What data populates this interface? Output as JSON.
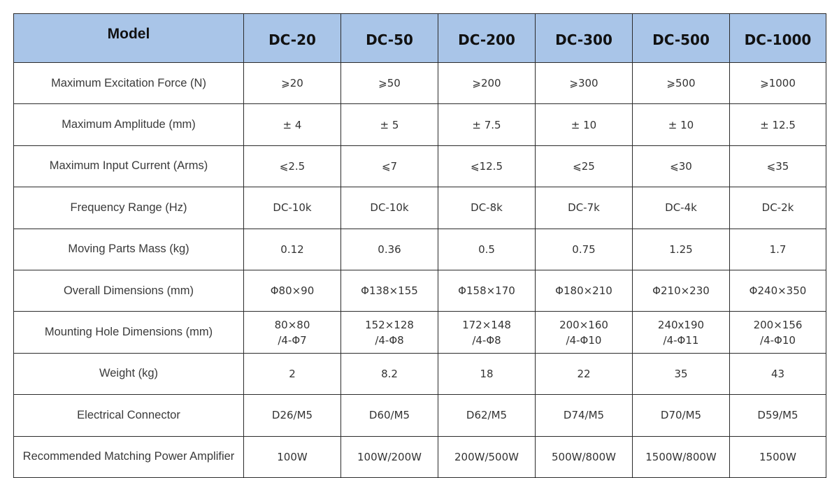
{
  "table": {
    "header_label": "Model",
    "models": [
      "DC-20",
      "DC-50",
      "DC-200",
      "DC-300",
      "DC-500",
      "DC-1000"
    ],
    "rows": [
      {
        "param": "Maximum Excitation Force (N)",
        "values": [
          [
            "⩾20"
          ],
          [
            "⩾50"
          ],
          [
            "⩾200"
          ],
          [
            "⩾300"
          ],
          [
            "⩾500"
          ],
          [
            "⩾1000"
          ]
        ]
      },
      {
        "param": "Maximum Amplitude (mm)",
        "values": [
          [
            "± 4"
          ],
          [
            "± 5"
          ],
          [
            "± 7.5"
          ],
          [
            "± 10"
          ],
          [
            "± 10"
          ],
          [
            "± 12.5"
          ]
        ]
      },
      {
        "param": "Maximum Input Current (Arms)",
        "values": [
          [
            "⩽2.5"
          ],
          [
            "⩽7"
          ],
          [
            "⩽12.5"
          ],
          [
            "⩽25"
          ],
          [
            "⩽30"
          ],
          [
            "⩽35"
          ]
        ]
      },
      {
        "param": "Frequency Range (Hz)",
        "values": [
          [
            "DC-10k"
          ],
          [
            "DC-10k"
          ],
          [
            "DC-8k"
          ],
          [
            "DC-7k"
          ],
          [
            "DC-4k"
          ],
          [
            "DC-2k"
          ]
        ]
      },
      {
        "param": "Moving Parts Mass (kg)",
        "values": [
          [
            "0.12"
          ],
          [
            "0.36"
          ],
          [
            "0.5"
          ],
          [
            "0.75"
          ],
          [
            "1.25"
          ],
          [
            "1.7"
          ]
        ]
      },
      {
        "param": "Overall Dimensions (mm)",
        "values": [
          [
            "Φ80×90"
          ],
          [
            "Φ138×155"
          ],
          [
            "Φ158×170"
          ],
          [
            "Φ180×210"
          ],
          [
            "Φ210×230"
          ],
          [
            "Φ240×350"
          ]
        ]
      },
      {
        "param": "Mounting Hole Dimensions (mm)",
        "values": [
          [
            "80×80",
            "/4-Φ7"
          ],
          [
            "152×128",
            "/4-Φ8"
          ],
          [
            "172×148",
            "/4-Φ8"
          ],
          [
            "200×160",
            "/4-Φ10"
          ],
          [
            "240x190",
            "/4-Φ11"
          ],
          [
            "200×156",
            "/4-Φ10"
          ]
        ]
      },
      {
        "param": "Weight (kg)",
        "values": [
          [
            "2"
          ],
          [
            "8.2"
          ],
          [
            "18"
          ],
          [
            "22"
          ],
          [
            "35"
          ],
          [
            "43"
          ]
        ]
      },
      {
        "param": "Electrical Connector",
        "values": [
          [
            "D26/M5"
          ],
          [
            "D60/M5"
          ],
          [
            "D62/M5"
          ],
          [
            "D74/M5"
          ],
          [
            "D70/M5"
          ],
          [
            "D59/M5"
          ]
        ]
      },
      {
        "param": "Recommended Matching Power Amplifier",
        "values": [
          [
            "100W"
          ],
          [
            "100W/200W"
          ],
          [
            "200W/500W"
          ],
          [
            "500W/800W"
          ],
          [
            "1500W/800W"
          ],
          [
            "1500W"
          ]
        ]
      }
    ]
  },
  "colors": {
    "header_background": "#a9c5e8",
    "border": "#2b2b2b"
  }
}
